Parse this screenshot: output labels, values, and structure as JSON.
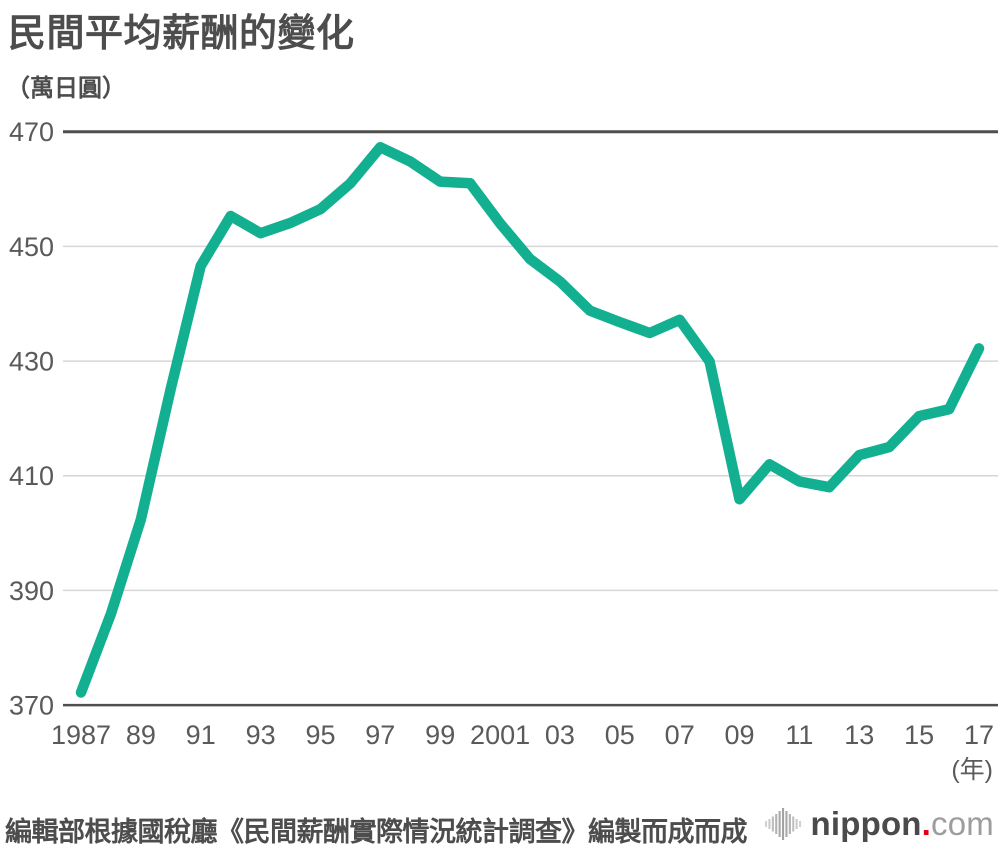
{
  "header": {
    "title": "民間平均薪酬的變化",
    "unit_label": "（萬日圓）"
  },
  "chart_data": {
    "type": "line",
    "title": "民間平均薪酬的變化",
    "ylabel": "（萬日圓）",
    "xlabel": "(年)",
    "ylim": [
      370,
      470
    ],
    "grid": "horizontal",
    "legend": "none",
    "yticks": [
      470,
      450,
      430,
      410,
      390,
      370
    ],
    "xticks": [
      {
        "label": "1987",
        "year": 1987
      },
      {
        "label": "89",
        "year": 1989
      },
      {
        "label": "91",
        "year": 1991
      },
      {
        "label": "93",
        "year": 1993
      },
      {
        "label": "95",
        "year": 1995
      },
      {
        "label": "97",
        "year": 1997
      },
      {
        "label": "99",
        "year": 1999
      },
      {
        "label": "2001",
        "year": 2001
      },
      {
        "label": "03",
        "year": 2003
      },
      {
        "label": "05",
        "year": 2005
      },
      {
        "label": "07",
        "year": 2007
      },
      {
        "label": "09",
        "year": 2009
      },
      {
        "label": "11",
        "year": 2011
      },
      {
        "label": "13",
        "year": 2013
      },
      {
        "label": "15",
        "year": 2015
      },
      {
        "label": "17",
        "year": 2017
      }
    ],
    "x": [
      1987,
      1988,
      1989,
      1990,
      1991,
      1992,
      1993,
      1994,
      1995,
      1996,
      1997,
      1998,
      1999,
      2000,
      2001,
      2002,
      2003,
      2004,
      2005,
      2006,
      2007,
      2008,
      2009,
      2010,
      2011,
      2012,
      2013,
      2014,
      2015,
      2016,
      2017
    ],
    "series": [
      {
        "name": "民間平均薪酬（萬日圓）",
        "values": [
          372.2,
          385.9,
          402.4,
          425.2,
          446.6,
          455.3,
          452.3,
          454.1,
          456.5,
          461.0,
          467.3,
          464.8,
          461.3,
          461.0,
          454.0,
          447.8,
          443.9,
          438.8,
          436.8,
          434.9,
          437.2,
          429.9,
          405.9,
          412.0,
          409.0,
          408.0,
          413.6,
          415.0,
          420.4,
          421.6,
          432.2
        ]
      }
    ],
    "colors": {
      "line": "#12B091",
      "axis_dark": "#4F4F4F",
      "grid_light": "#D6D6D6",
      "tick_text": "#5A5A5A"
    }
  },
  "footer": {
    "source": "編輯部根據國稅廳《民間薪酬實際情況統計調查》編製而成而成",
    "logo": {
      "icon": "soundwave-bars-icon",
      "name": "nippon",
      "dot": ".",
      "tld": "com",
      "dot_color": "#E60012"
    }
  }
}
